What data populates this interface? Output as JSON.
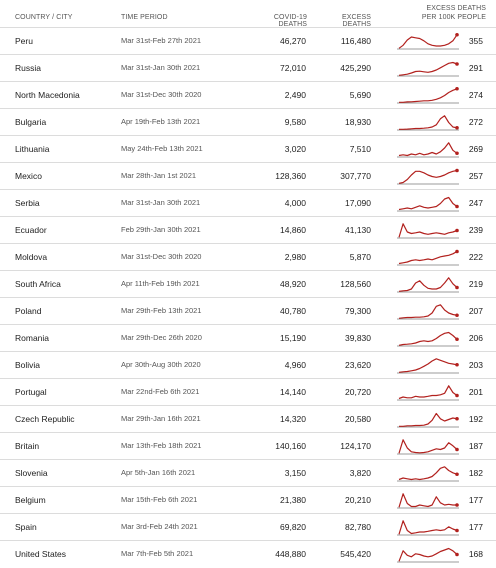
{
  "headers": {
    "country": "COUNTRY / CITY",
    "period": "TIME PERIOD",
    "covid": "COVID-19 DEATHS",
    "excess": "EXCESS DEATHS",
    "per100k_line1": "EXCESS DEATHS",
    "per100k_line2": "PER 100K PEOPLE"
  },
  "colors": {
    "spark_line": "#b2211e",
    "spark_base": "#7a7a7a"
  },
  "chart_data": {
    "type": "table",
    "columns": [
      "COUNTRY / CITY",
      "TIME PERIOD",
      "COVID-19 DEATHS",
      "EXCESS DEATHS",
      "EXCESS DEATHS PER 100K PEOPLE"
    ],
    "rows": [
      {
        "country": "Peru",
        "period": "Mar 31st-Feb 27th 2021",
        "covid": "46,270",
        "excess": "116,480",
        "per100k": "355",
        "spark": [
          0.05,
          0.25,
          0.6,
          0.8,
          0.75,
          0.7,
          0.55,
          0.35,
          0.25,
          0.2,
          0.2,
          0.25,
          0.35,
          0.55,
          0.95
        ]
      },
      {
        "country": "Russia",
        "period": "Mar 31st-Jan 30th 2021",
        "covid": "72,010",
        "excess": "425,290",
        "per100k": "291",
        "spark": [
          0.05,
          0.08,
          0.12,
          0.2,
          0.3,
          0.32,
          0.28,
          0.25,
          0.3,
          0.4,
          0.55,
          0.7,
          0.85,
          0.9,
          0.8
        ]
      },
      {
        "country": "North Macedonia",
        "period": "Mar 31st-Dec 30th 2020",
        "covid": "2,490",
        "excess": "5,690",
        "per100k": "274",
        "spark": [
          0.05,
          0.05,
          0.07,
          0.08,
          0.1,
          0.12,
          0.15,
          0.15,
          0.18,
          0.25,
          0.35,
          0.5,
          0.7,
          0.85,
          0.95
        ]
      },
      {
        "country": "Bulgaria",
        "period": "Apr 19th-Feb 13th 2021",
        "covid": "9,580",
        "excess": "18,930",
        "per100k": "272",
        "spark": [
          0.05,
          0.05,
          0.06,
          0.08,
          0.1,
          0.1,
          0.12,
          0.15,
          0.2,
          0.35,
          0.75,
          0.95,
          0.5,
          0.2,
          0.15
        ]
      },
      {
        "country": "Lithuania",
        "period": "May 24th-Feb 13th 2021",
        "covid": "3,020",
        "excess": "7,510",
        "per100k": "269",
        "spark": [
          0.1,
          0.15,
          0.1,
          0.2,
          0.15,
          0.25,
          0.15,
          0.2,
          0.3,
          0.2,
          0.35,
          0.6,
          0.95,
          0.45,
          0.25
        ]
      },
      {
        "country": "Mexico",
        "period": "Mar 28th-Jan 1st 2021",
        "covid": "128,360",
        "excess": "307,770",
        "per100k": "257",
        "spark": [
          0.05,
          0.1,
          0.3,
          0.6,
          0.85,
          0.85,
          0.75,
          0.6,
          0.5,
          0.45,
          0.5,
          0.6,
          0.75,
          0.85,
          0.9
        ]
      },
      {
        "country": "Serbia",
        "period": "Mar 31st-Jan 30th 2021",
        "covid": "4,000",
        "excess": "17,090",
        "per100k": "247",
        "spark": [
          0.1,
          0.15,
          0.2,
          0.15,
          0.25,
          0.35,
          0.25,
          0.2,
          0.25,
          0.3,
          0.5,
          0.8,
          0.9,
          0.5,
          0.3
        ]
      },
      {
        "country": "Ecuador",
        "period": "Feb 29th-Jan 30th 2021",
        "covid": "14,860",
        "excess": "41,130",
        "per100k": "239",
        "spark": [
          0.05,
          0.95,
          0.4,
          0.3,
          0.35,
          0.4,
          0.3,
          0.25,
          0.3,
          0.35,
          0.3,
          0.25,
          0.35,
          0.4,
          0.5
        ]
      },
      {
        "country": "Moldova",
        "period": "Mar 31st-Dec 30th 2020",
        "covid": "2,980",
        "excess": "5,870",
        "per100k": "222",
        "spark": [
          0.1,
          0.15,
          0.2,
          0.3,
          0.35,
          0.3,
          0.35,
          0.4,
          0.35,
          0.45,
          0.55,
          0.6,
          0.65,
          0.75,
          0.9
        ]
      },
      {
        "country": "South Africa",
        "period": "Apr 11th-Feb 19th 2021",
        "covid": "48,920",
        "excess": "128,560",
        "per100k": "219",
        "spark": [
          0.05,
          0.08,
          0.1,
          0.2,
          0.6,
          0.75,
          0.45,
          0.25,
          0.2,
          0.2,
          0.3,
          0.6,
          0.95,
          0.55,
          0.3
        ]
      },
      {
        "country": "Poland",
        "period": "Mar 29th-Feb 13th 2021",
        "covid": "40,780",
        "excess": "79,300",
        "per100k": "207",
        "spark": [
          0.05,
          0.08,
          0.1,
          0.1,
          0.12,
          0.12,
          0.15,
          0.2,
          0.4,
          0.85,
          0.95,
          0.6,
          0.4,
          0.3,
          0.25
        ]
      },
      {
        "country": "Romania",
        "period": "Mar 29th-Dec 26th 2020",
        "covid": "15,190",
        "excess": "39,830",
        "per100k": "206",
        "spark": [
          0.05,
          0.1,
          0.12,
          0.15,
          0.2,
          0.3,
          0.35,
          0.3,
          0.35,
          0.5,
          0.7,
          0.85,
          0.9,
          0.7,
          0.45
        ]
      },
      {
        "country": "Bolivia",
        "period": "Apr 30th-Aug 30th 2020",
        "covid": "4,960",
        "excess": "23,620",
        "per100k": "203",
        "spark": [
          0.05,
          0.08,
          0.1,
          0.15,
          0.2,
          0.3,
          0.45,
          0.6,
          0.8,
          0.95,
          0.85,
          0.75,
          0.65,
          0.6,
          0.55
        ]
      },
      {
        "country": "Portugal",
        "period": "Mar 22nd-Feb 6th 2021",
        "covid": "14,140",
        "excess": "20,720",
        "per100k": "201",
        "spark": [
          0.1,
          0.2,
          0.15,
          0.15,
          0.25,
          0.2,
          0.2,
          0.25,
          0.3,
          0.3,
          0.35,
          0.45,
          0.95,
          0.5,
          0.3
        ]
      },
      {
        "country": "Czech Republic",
        "period": "Mar 29th-Jan 16th 2021",
        "covid": "14,320",
        "excess": "20,580",
        "per100k": "192",
        "spark": [
          0.05,
          0.05,
          0.08,
          0.08,
          0.1,
          0.1,
          0.12,
          0.2,
          0.45,
          0.9,
          0.55,
          0.4,
          0.5,
          0.6,
          0.55
        ]
      },
      {
        "country": "Britain",
        "period": "Mar 13th-Feb 18th 2021",
        "covid": "140,160",
        "excess": "124,170",
        "per100k": "187",
        "spark": [
          0.05,
          0.95,
          0.4,
          0.15,
          0.1,
          0.08,
          0.1,
          0.15,
          0.25,
          0.35,
          0.3,
          0.4,
          0.75,
          0.55,
          0.3
        ]
      },
      {
        "country": "Slovenia",
        "period": "Apr 5th-Jan 16th 2021",
        "covid": "3,150",
        "excess": "3,820",
        "per100k": "182",
        "spark": [
          0.1,
          0.2,
          0.15,
          0.1,
          0.15,
          0.1,
          0.15,
          0.2,
          0.3,
          0.55,
          0.85,
          0.95,
          0.7,
          0.55,
          0.45
        ]
      },
      {
        "country": "Belgium",
        "period": "Mar 15th-Feb 6th 2021",
        "covid": "21,380",
        "excess": "20,210",
        "per100k": "177",
        "spark": [
          0.05,
          0.95,
          0.3,
          0.1,
          0.1,
          0.2,
          0.15,
          0.1,
          0.2,
          0.75,
          0.35,
          0.2,
          0.25,
          0.2,
          0.2
        ]
      },
      {
        "country": "Spain",
        "period": "Mar 3rd-Feb 24th 2021",
        "covid": "69,820",
        "excess": "82,780",
        "per100k": "177",
        "spark": [
          0.05,
          0.95,
          0.3,
          0.1,
          0.15,
          0.2,
          0.2,
          0.25,
          0.3,
          0.35,
          0.3,
          0.35,
          0.55,
          0.4,
          0.3
        ]
      },
      {
        "country": "United States",
        "period": "Mar 7th-Feb 5th 2021",
        "covid": "448,880",
        "excess": "545,420",
        "per100k": "168",
        "spark": [
          0.05,
          0.75,
          0.45,
          0.35,
          0.55,
          0.5,
          0.4,
          0.35,
          0.4,
          0.55,
          0.7,
          0.8,
          0.9,
          0.75,
          0.5
        ]
      }
    ]
  }
}
